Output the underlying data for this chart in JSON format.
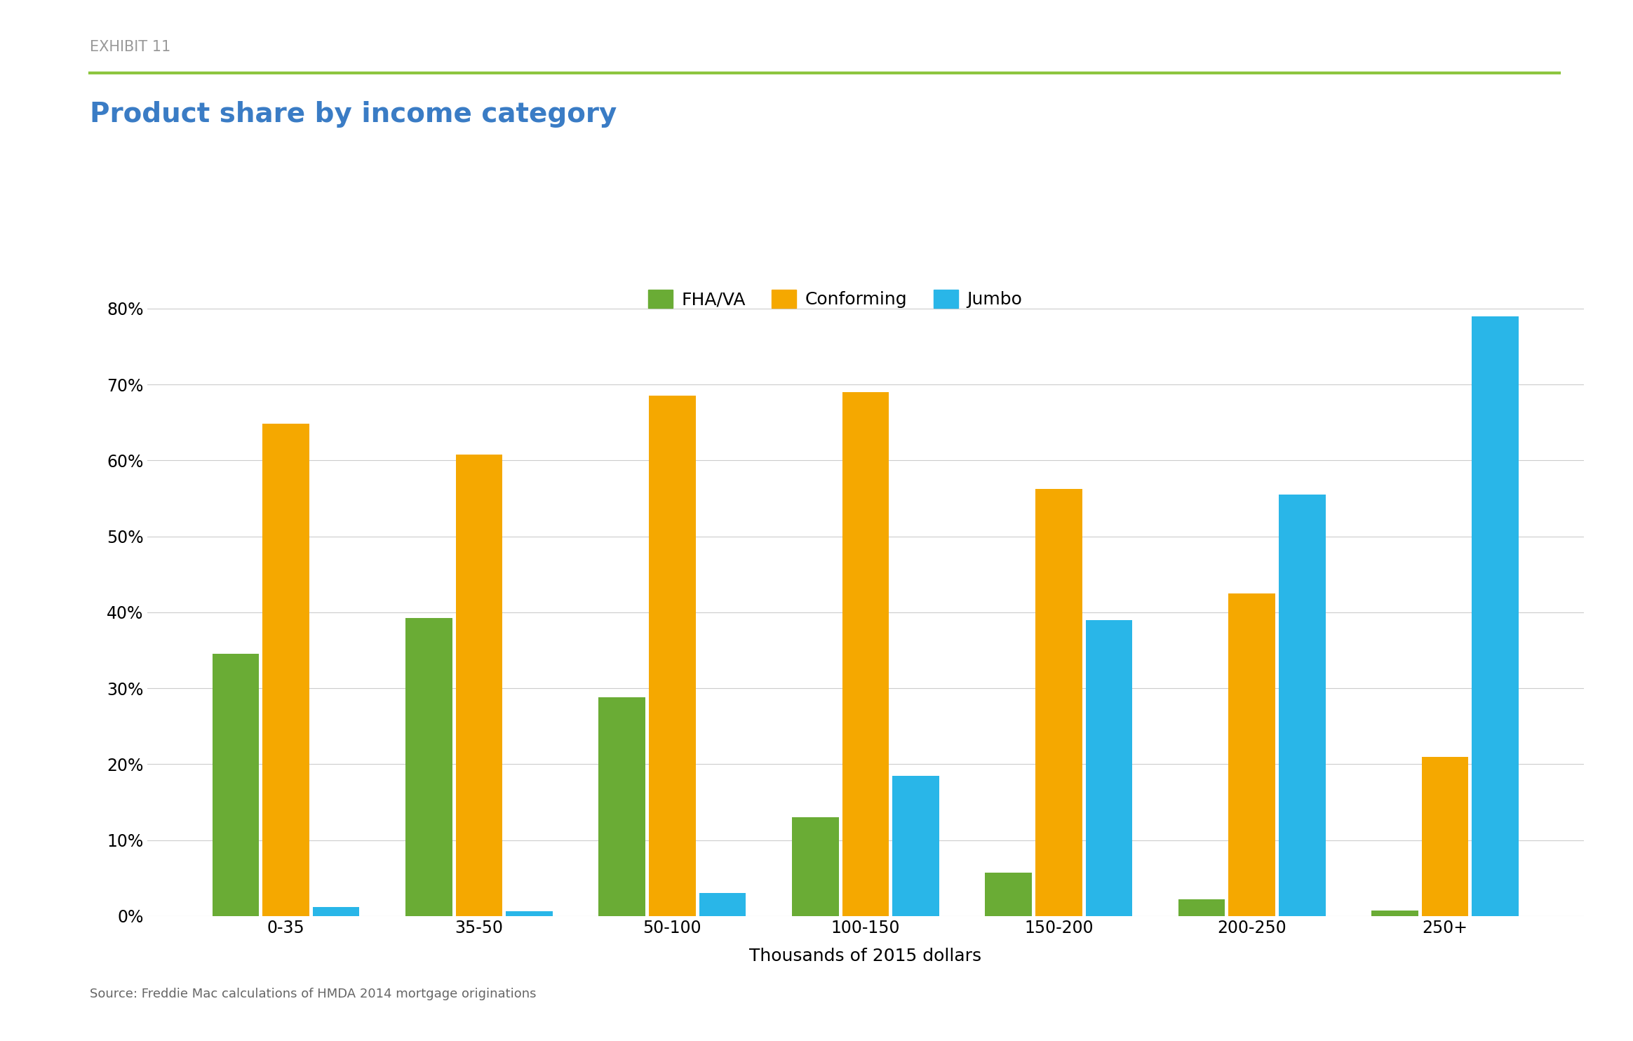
{
  "title": "Product share by income category",
  "exhibit_label": "EXHIBIT 11",
  "xlabel": "Thousands of 2015 dollars",
  "source_text": "Source: Freddie Mac calculations of HMDA 2014 mortgage originations",
  "categories": [
    "0-35",
    "35-50",
    "50-100",
    "100-150",
    "150-200",
    "200-250",
    "250+"
  ],
  "series": {
    "FHA/VA": [
      0.345,
      0.393,
      0.288,
      0.13,
      0.057,
      0.022,
      0.007
    ],
    "Conforming": [
      0.648,
      0.608,
      0.685,
      0.69,
      0.563,
      0.425,
      0.21
    ],
    "Jumbo": [
      0.012,
      0.006,
      0.03,
      0.185,
      0.39,
      0.555,
      0.79
    ]
  },
  "colors": {
    "FHA/VA": "#6AAC35",
    "Conforming": "#F5A800",
    "Jumbo": "#29B6E8"
  },
  "ylim": [
    0,
    0.85
  ],
  "yticks": [
    0,
    0.1,
    0.2,
    0.3,
    0.4,
    0.5,
    0.6,
    0.7,
    0.8
  ],
  "title_color": "#3A7CC5",
  "title_fontsize": 28,
  "exhibit_color": "#999999",
  "exhibit_fontsize": 15,
  "xlabel_fontsize": 18,
  "tick_fontsize": 17,
  "legend_fontsize": 18,
  "source_fontsize": 13,
  "bar_width": 0.26,
  "green_line_color": "#8DC63F",
  "background_color": "#FFFFFF",
  "grid_color": "#CCCCCC"
}
